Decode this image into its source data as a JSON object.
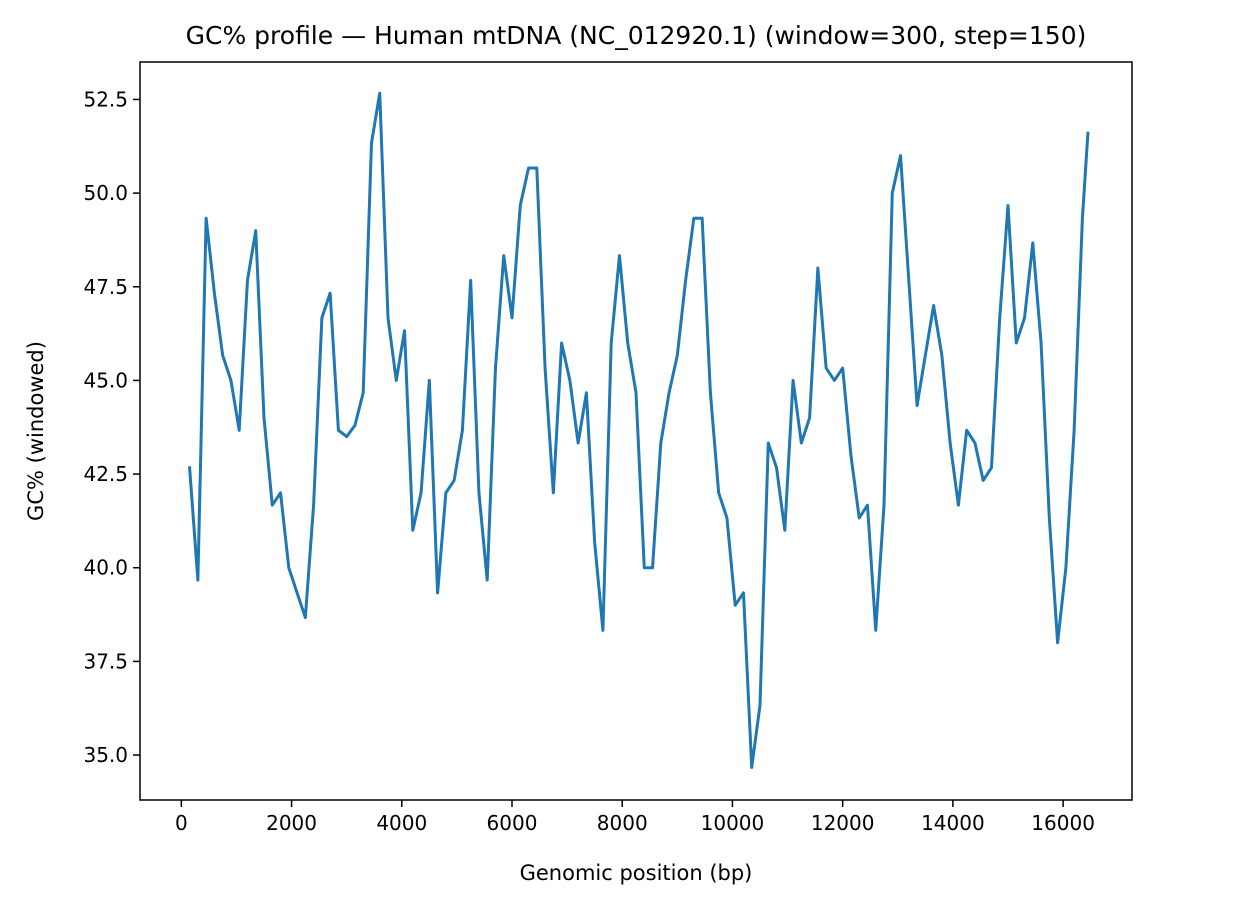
{
  "chart_data": {
    "type": "line",
    "title": "GC% profile — Human mtDNA (NC_012920.1) (window=300, step=150)",
    "xlabel": "Genomic position (bp)",
    "ylabel": "GC% (windowed)",
    "xlim": [
      -750,
      17250
    ],
    "ylim": [
      33.8,
      53.5
    ],
    "xticks": [
      0,
      2000,
      4000,
      6000,
      8000,
      10000,
      12000,
      14000,
      16000
    ],
    "xtick_labels": [
      "0",
      "2000",
      "4000",
      "6000",
      "8000",
      "10000",
      "12000",
      "14000",
      "16000"
    ],
    "yticks": [
      35.0,
      37.5,
      40.0,
      42.5,
      45.0,
      47.5,
      50.0,
      52.5
    ],
    "ytick_labels": [
      "35.0",
      "37.5",
      "40.0",
      "42.5",
      "45.0",
      "47.5",
      "50.0",
      "52.5"
    ],
    "grid": false,
    "series_color": "#1f77b4",
    "series": [
      {
        "x": [
          150,
          300,
          450,
          600,
          750,
          900,
          1050,
          1200,
          1350,
          1500,
          1650,
          1800,
          1950,
          2100,
          2250,
          2400,
          2550,
          2700,
          2850,
          3000,
          3150,
          3300,
          3450,
          3600,
          3750,
          3900,
          4050,
          4200,
          4350,
          4500,
          4650,
          4800,
          4950,
          5100,
          5250,
          5400,
          5550,
          5700,
          5850,
          6000,
          6150,
          6300,
          6450,
          6600,
          6750,
          6900,
          7050,
          7200,
          7350,
          7500,
          7650,
          7800,
          7950,
          8100,
          8250,
          8400,
          8550,
          8700,
          8850,
          9000,
          9150,
          9300,
          9450,
          9600,
          9750,
          9900,
          10050,
          10200,
          10350,
          10500,
          10650,
          10800,
          10950,
          11100,
          11250,
          11400,
          11550,
          11700,
          11850,
          12000,
          12150,
          12300,
          12450,
          12600,
          12750,
          12900,
          13050,
          13200,
          13350,
          13500,
          13650,
          13800,
          13950,
          14100,
          14250,
          14400,
          14550,
          14700,
          14850,
          15000,
          15150,
          15300,
          15450,
          15600,
          15750,
          15900,
          16050,
          16200,
          16350,
          16450
        ],
        "y": [
          42.67,
          39.67,
          49.33,
          47.33,
          45.67,
          45.0,
          43.67,
          47.67,
          49.0,
          44.0,
          41.67,
          42.0,
          40.0,
          39.33,
          38.67,
          41.67,
          46.67,
          47.33,
          43.67,
          43.5,
          43.8,
          44.67,
          51.33,
          52.67,
          46.67,
          45.0,
          46.33,
          41.0,
          42.0,
          45.0,
          39.33,
          42.0,
          42.33,
          43.67,
          47.67,
          42.0,
          39.67,
          45.33,
          48.33,
          46.67,
          49.67,
          50.67,
          50.67,
          45.33,
          42.0,
          46.0,
          45.0,
          43.33,
          44.67,
          40.67,
          38.33,
          46.0,
          48.33,
          46.0,
          44.67,
          40.0,
          40.0,
          43.33,
          44.67,
          45.67,
          47.67,
          49.33,
          49.33,
          44.67,
          42.0,
          41.33,
          39.0,
          39.33,
          34.67,
          36.33,
          43.33,
          42.67,
          41.0,
          45.0,
          43.33,
          44.0,
          48.0,
          45.33,
          45.0,
          45.33,
          43.0,
          41.33,
          41.67,
          38.33,
          41.67,
          50.0,
          51.0,
          47.67,
          44.33,
          45.67,
          47.0,
          45.67,
          43.33,
          41.67,
          43.67,
          43.33,
          42.33,
          42.67,
          46.67,
          49.67,
          46.0,
          46.67,
          48.67,
          46.0,
          41.33,
          38.0,
          40.0,
          43.67,
          49.33,
          51.6
        ]
      }
    ]
  }
}
